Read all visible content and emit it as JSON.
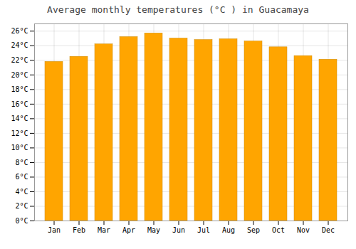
{
  "chart_data": {
    "type": "bar",
    "title": "Average monthly temperatures (°C ) in Guacamaya",
    "categories": [
      "Jan",
      "Feb",
      "Mar",
      "Apr",
      "May",
      "Jun",
      "Jul",
      "Aug",
      "Sep",
      "Oct",
      "Nov",
      "Dec"
    ],
    "values": [
      21.8,
      22.5,
      24.2,
      25.2,
      25.7,
      25.0,
      24.8,
      24.9,
      24.6,
      23.8,
      22.6,
      22.1
    ],
    "color": "#FFA500",
    "ylim": [
      0,
      27
    ],
    "yticks": [
      {
        "value": 0,
        "label": "0°C"
      },
      {
        "value": 2,
        "label": "2°C"
      },
      {
        "value": 4,
        "label": "4°C"
      },
      {
        "value": 6,
        "label": "6°C"
      },
      {
        "value": 8,
        "label": "8°C"
      },
      {
        "value": 10,
        "label": "10°C"
      },
      {
        "value": 12,
        "label": "12°C"
      },
      {
        "value": 14,
        "label": "14°C"
      },
      {
        "value": 16,
        "label": "16°C"
      },
      {
        "value": 18,
        "label": "18°C"
      },
      {
        "value": 20,
        "label": "20°C"
      },
      {
        "value": 22,
        "label": "22°C"
      },
      {
        "value": 24,
        "label": "24°C"
      },
      {
        "value": 26,
        "label": "26°C"
      }
    ],
    "grid": true
  }
}
